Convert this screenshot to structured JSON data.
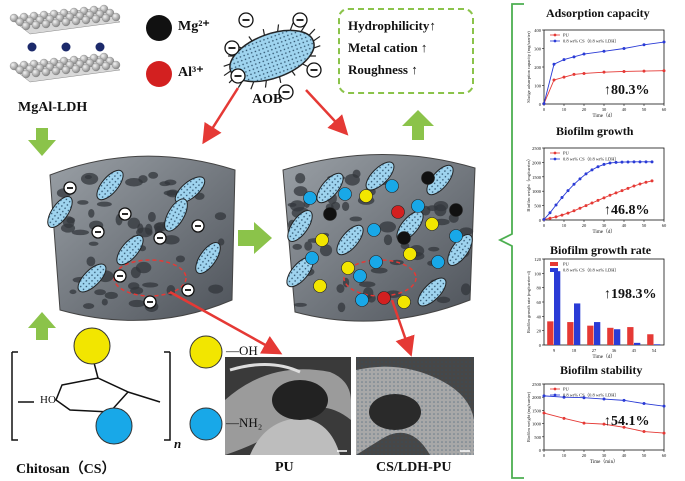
{
  "legend_top": {
    "ldh_name": "MgAl-LDH",
    "mg_label": "Mg²⁺",
    "al_label": "Al³⁺",
    "aob_label": "AOB"
  },
  "callout": {
    "line1": "Hydrophilicity↑",
    "line2": "Metal cation ↑",
    "line3": "Roughness ↑"
  },
  "bottom": {
    "oh_label": "—OH",
    "nh2_label": "—NH₂",
    "ho_label": "HO",
    "n_label": "n",
    "chitosan_label": "Chitosan（CS）",
    "sem_left_label": "PU",
    "sem_right_label": "CS/LDH-PU"
  },
  "colors": {
    "mg": "#111111",
    "al": "#d32020",
    "oh": "#f2e600",
    "nh2": "#18a8e8",
    "pu_series": "#e53935",
    "cs_series": "#2a3bd6",
    "arrow_red": "#e53935",
    "arrow_green": "#8bc34a",
    "bracket": "#4caf50"
  },
  "chart_data": [
    {
      "type": "line",
      "title": "Adsorption capacity",
      "xlabel": "Time（d）",
      "ylabel": "Sludge adsorption capacity (mg/carrier)",
      "xlim": [
        0,
        60
      ],
      "ylim": [
        0,
        400
      ],
      "xticks": [
        0,
        10,
        20,
        30,
        40,
        50,
        60
      ],
      "yticks": [
        0,
        100,
        200,
        300,
        400
      ],
      "series": [
        {
          "name": "PU",
          "x": [
            0,
            5,
            10,
            15,
            20,
            30,
            40,
            50,
            60
          ],
          "y": [
            2,
            130,
            145,
            160,
            165,
            172,
            176,
            178,
            180
          ]
        },
        {
          "name": "0.8 wt% CS（0.8 wt% LDH）",
          "x": [
            0,
            5,
            10,
            15,
            20,
            30,
            40,
            50,
            60
          ],
          "y": [
            2,
            215,
            240,
            255,
            270,
            285,
            300,
            320,
            335
          ]
        }
      ],
      "annotation": "↑80.3%"
    },
    {
      "type": "line",
      "title": "Biofilm growth",
      "xlabel": "Time（d）",
      "ylabel": "Biofilm weight（mg/carrier）",
      "xlim": [
        0,
        60
      ],
      "ylim": [
        0,
        2500
      ],
      "xticks": [
        0,
        10,
        20,
        30,
        40,
        50,
        60
      ],
      "yticks": [
        0,
        500,
        1000,
        1500,
        2000,
        2500
      ],
      "series": [
        {
          "name": "PU",
          "x": [
            0,
            3,
            6,
            9,
            12,
            15,
            18,
            21,
            24,
            27,
            30,
            33,
            36,
            39,
            42,
            45,
            48,
            51,
            54
          ],
          "y": [
            20,
            60,
            110,
            170,
            240,
            320,
            410,
            500,
            590,
            680,
            770,
            860,
            940,
            1020,
            1100,
            1180,
            1250,
            1310,
            1360
          ]
        },
        {
          "name": "0.8 wt% CS（0.8 wt% LDH）",
          "x": [
            0,
            3,
            6,
            9,
            12,
            15,
            18,
            21,
            24,
            27,
            30,
            33,
            36,
            39,
            42,
            45,
            48,
            51,
            54
          ],
          "y": [
            20,
            250,
            520,
            780,
            1020,
            1240,
            1430,
            1600,
            1740,
            1850,
            1930,
            1980,
            2000,
            2010,
            2015,
            2020,
            2020,
            2020,
            2020
          ]
        }
      ],
      "annotation": "↑46.8%"
    },
    {
      "type": "bar",
      "title": "Biofilm growth rate",
      "xlabel": "Time（d）",
      "ylabel": "Biofilm growth rate (mg/carrier·d)",
      "categories": [
        "9",
        "18",
        "27",
        "36",
        "45",
        "54"
      ],
      "ylim": [
        0,
        120
      ],
      "yticks": [
        0,
        20,
        40,
        60,
        80,
        100,
        120
      ],
      "series": [
        {
          "name": "PU",
          "values": [
            33,
            32,
            27,
            24,
            25,
            15
          ]
        },
        {
          "name": "0.8 wt% CS（0.8 wt% LDH）",
          "values": [
            103,
            58,
            32,
            22,
            3,
            1
          ]
        }
      ],
      "annotation": "↑198.3%"
    },
    {
      "type": "line",
      "title": "Biofilm stability",
      "xlabel": "Time（min）",
      "ylabel": "Biofilm weight (mg/carrier)",
      "xlim": [
        0,
        60
      ],
      "ylim": [
        0,
        2500
      ],
      "xticks": [
        0,
        10,
        20,
        30,
        40,
        50,
        60
      ],
      "yticks": [
        0,
        500,
        1000,
        1500,
        2000,
        2500
      ],
      "series": [
        {
          "name": "PU",
          "x": [
            0,
            10,
            20,
            30,
            40,
            50,
            60
          ],
          "y": [
            1400,
            1200,
            1020,
            980,
            860,
            700,
            640
          ]
        },
        {
          "name": "0.8 wt% CS（0.8 wt% LDH）",
          "x": [
            0,
            10,
            20,
            30,
            40,
            50,
            60
          ],
          "y": [
            2050,
            2000,
            1980,
            1930,
            1880,
            1760,
            1660
          ]
        }
      ],
      "annotation": "↑54.1%"
    }
  ]
}
